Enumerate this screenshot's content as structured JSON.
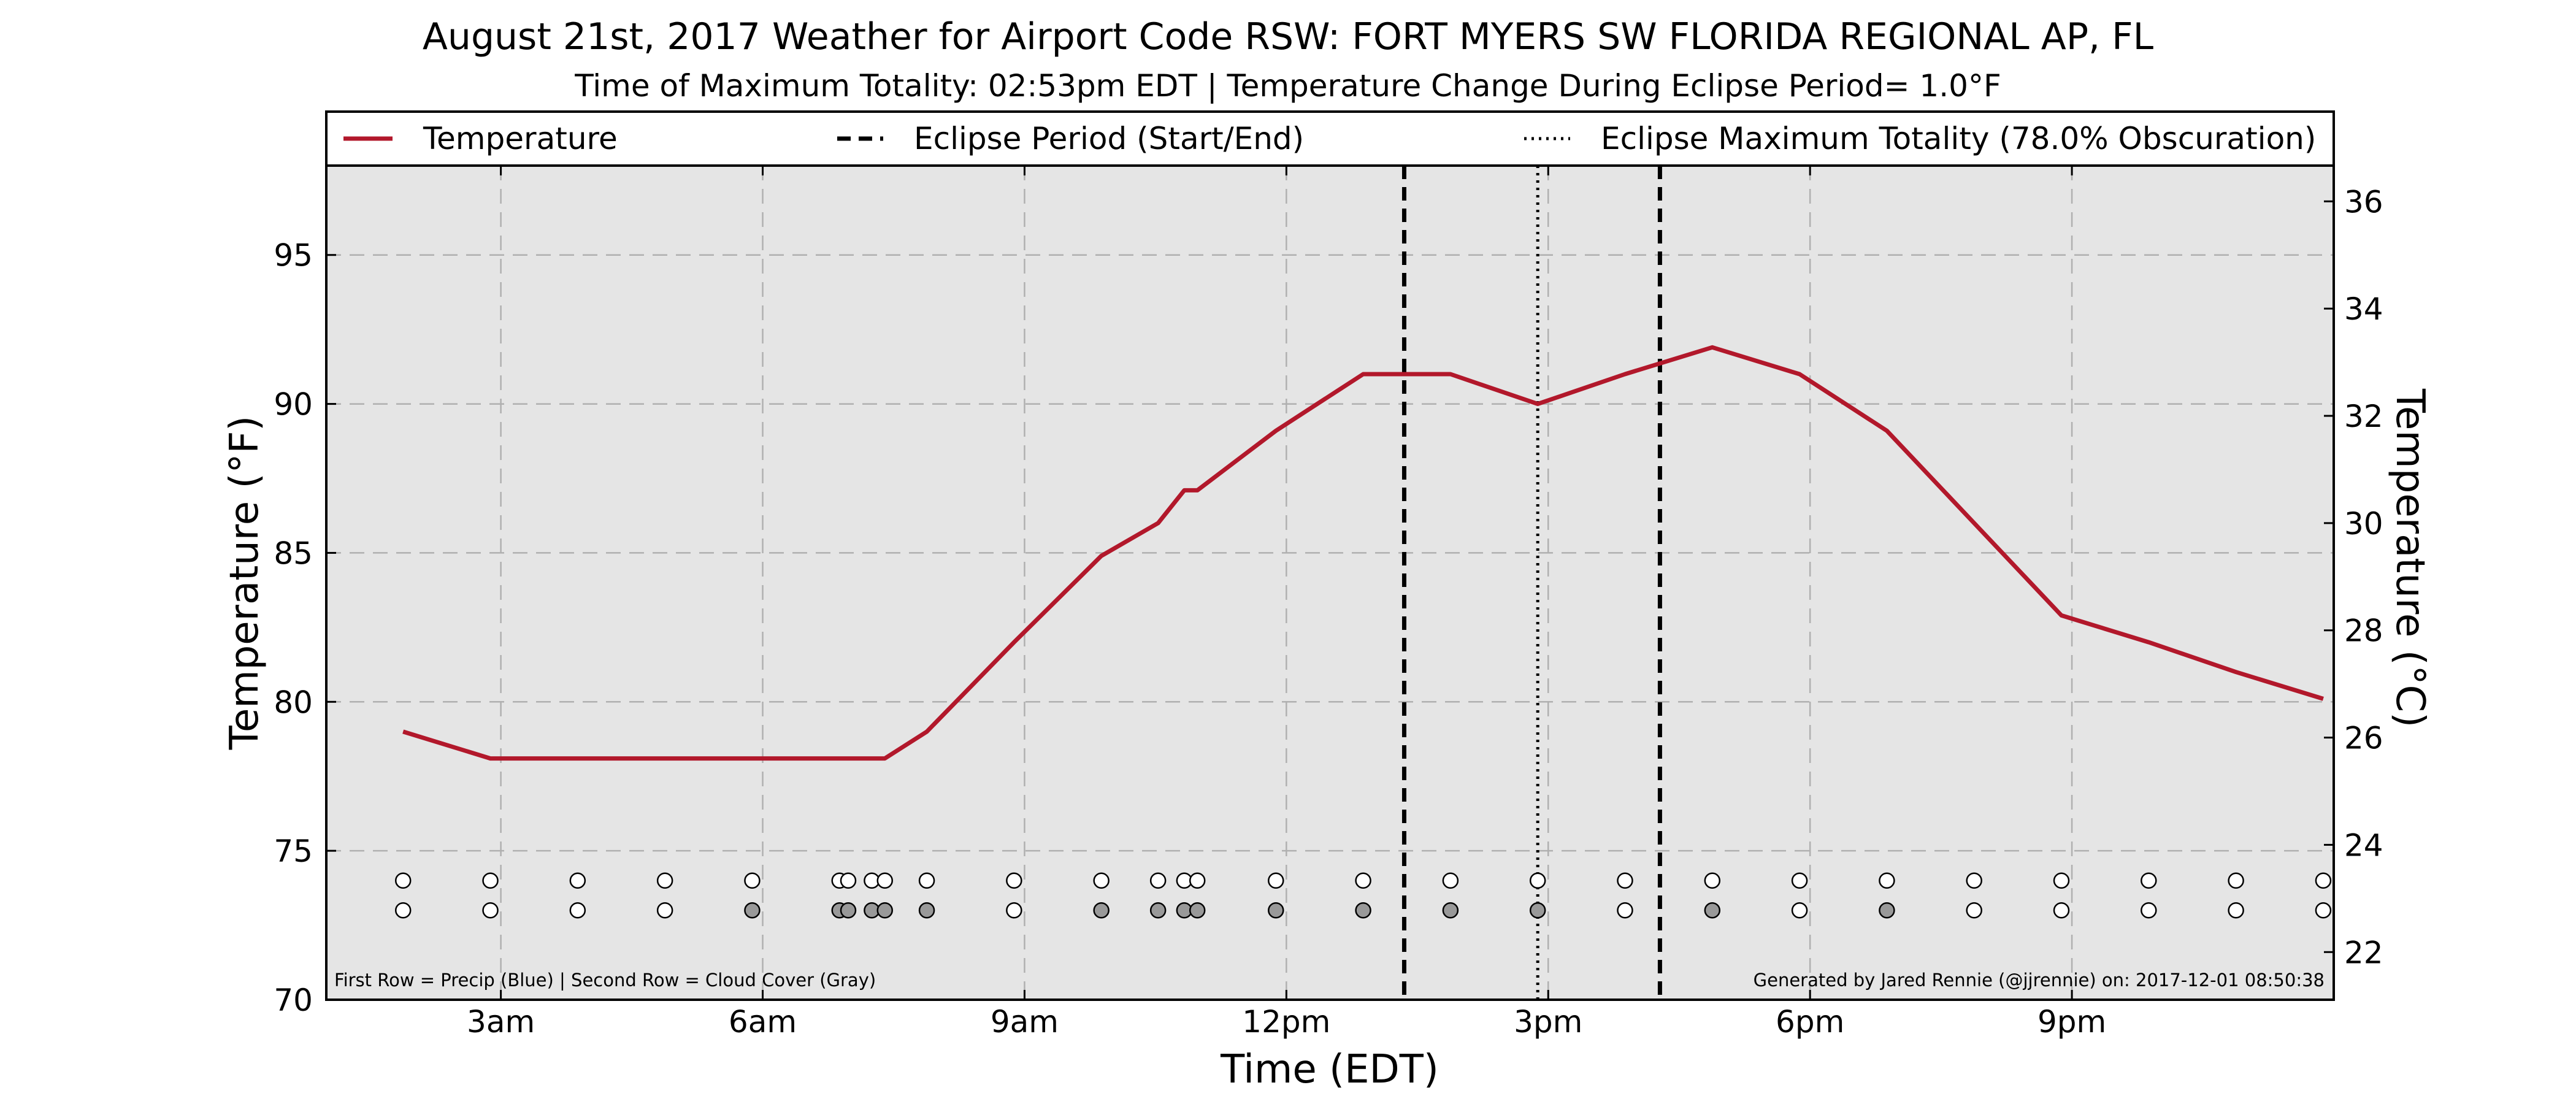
{
  "chart_data": {
    "type": "line",
    "title": "August 21st, 2017 Weather for Airport Code RSW: FORT MYERS SW FLORIDA REGIONAL AP, FL",
    "subtitle": "Time of Maximum Totality: 02:53pm EDT | Temperature Change During Eclipse Period= 1.0°F",
    "xlabel": "Time (EDT)",
    "ylabel": "Temperature (°F)",
    "ylabel2": "Temperature (°C)",
    "xlim": [
      1.0,
      24.0
    ],
    "ylim": [
      70,
      98
    ],
    "ylim2_c": [
      21.111,
      36.667
    ],
    "x_ticks": [
      {
        "x": 3,
        "label": "3am"
      },
      {
        "x": 6,
        "label": "6am"
      },
      {
        "x": 9,
        "label": "9am"
      },
      {
        "x": 12,
        "label": "12pm"
      },
      {
        "x": 15,
        "label": "3pm"
      },
      {
        "x": 18,
        "label": "6pm"
      },
      {
        "x": 21,
        "label": "9pm"
      }
    ],
    "y_ticks": [
      70,
      75,
      80,
      85,
      90,
      95
    ],
    "y2_ticks": [
      22,
      24,
      26,
      28,
      30,
      32,
      34,
      36
    ],
    "grid": true,
    "legend_position": "top",
    "legend": [
      {
        "label": "Temperature",
        "style": "solid",
        "color": "#b2182b"
      },
      {
        "label": "Eclipse Period (Start/End)",
        "style": "dashed",
        "color": "#000000"
      },
      {
        "label": "Eclipse Maximum Totality (78.0% Obscuration)",
        "style": "dotted",
        "color": "#000000"
      }
    ],
    "series": [
      {
        "name": "Temperature",
        "color": "#b2182b",
        "x": [
          1.88,
          2.88,
          3.88,
          4.88,
          5.88,
          6.88,
          6.98,
          7.25,
          7.4,
          7.88,
          8.88,
          9.88,
          10.53,
          10.83,
          10.98,
          11.88,
          12.88,
          13.88,
          14.88,
          15.88,
          16.88,
          17.88,
          18.88,
          19.88,
          20.88,
          21.88,
          22.88,
          23.88
        ],
        "y": [
          79.0,
          78.1,
          78.1,
          78.1,
          78.1,
          78.1,
          78.1,
          78.1,
          78.1,
          79.0,
          82.0,
          84.9,
          86.0,
          87.1,
          87.1,
          89.1,
          91.0,
          91.0,
          90.0,
          91.0,
          91.9,
          91.0,
          89.1,
          86.0,
          82.9,
          82.0,
          81.0,
          80.1
        ]
      }
    ],
    "eclipse_start_x": 13.35,
    "eclipse_end_x": 16.28,
    "eclipse_max_x": 14.88,
    "obs_row_y": [
      74.0,
      73.0
    ],
    "obs_x": [
      1.88,
      2.88,
      3.88,
      4.88,
      5.88,
      6.88,
      6.98,
      7.25,
      7.4,
      7.88,
      8.88,
      9.88,
      10.53,
      10.83,
      10.98,
      11.88,
      12.88,
      13.88,
      14.88,
      15.88,
      16.88,
      17.88,
      18.88,
      19.88,
      20.88,
      21.88,
      22.88,
      23.88
    ],
    "precip_row": [
      "none",
      "none",
      "none",
      "none",
      "none",
      "none",
      "none",
      "none",
      "none",
      "none",
      "none",
      "none",
      "none",
      "none",
      "none",
      "none",
      "none",
      "none",
      "none",
      "none",
      "none",
      "none",
      "none",
      "none",
      "none",
      "none",
      "none",
      "none"
    ],
    "cloud_row": [
      "clear",
      "clear",
      "clear",
      "clear",
      "cloudy",
      "cloudy",
      "cloudy",
      "cloudy",
      "cloudy",
      "cloudy",
      "clear",
      "cloudy",
      "cloudy",
      "cloudy",
      "cloudy",
      "cloudy",
      "cloudy",
      "cloudy",
      "cloudy",
      "clear",
      "cloudy",
      "clear",
      "cloudy",
      "clear",
      "clear",
      "clear",
      "clear",
      "clear"
    ],
    "colors": {
      "plot_bg": "#e5e5e5",
      "grid": "#b0b0b0",
      "cloudy_fill": "#999999",
      "clear_fill": "#ffffff"
    },
    "footnote_left": "First Row = Precip (Blue) | Second Row = Cloud Cover (Gray)",
    "footnote_right": "Generated by Jared Rennie (@jjrennie) on: 2017-12-01 08:50:38"
  }
}
